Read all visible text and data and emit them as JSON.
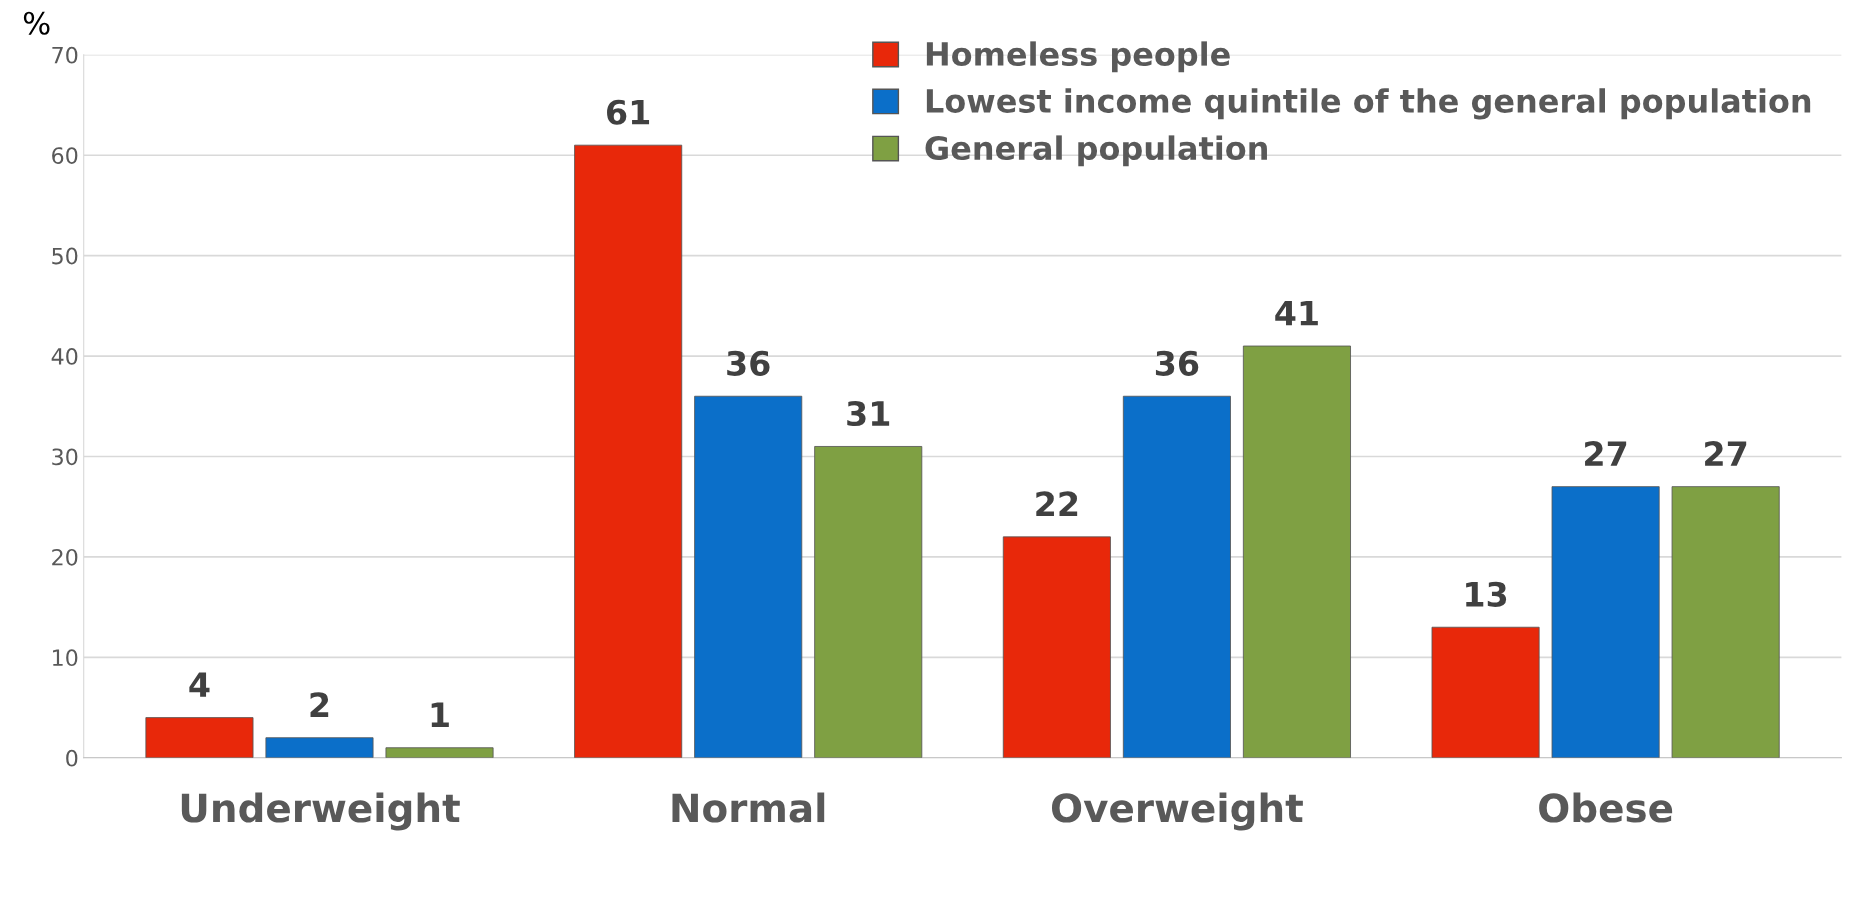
{
  "chart_data": {
    "type": "bar",
    "ylabel": "%",
    "categories": [
      "Underweight",
      "Normal",
      "Overweight",
      "Obese"
    ],
    "series": [
      {
        "name": "Homeless people",
        "color": "#e8280a",
        "values": [
          4,
          61,
          22,
          13
        ]
      },
      {
        "name": "Lowest income quintile of the general population",
        "color": "#0b6fc9",
        "values": [
          2,
          36,
          36,
          27
        ]
      },
      {
        "name": "General population",
        "color": "#7fa043",
        "values": [
          1,
          31,
          41,
          27
        ]
      }
    ],
    "ylim": [
      0,
      70
    ],
    "yticks": [
      0,
      10,
      20,
      30,
      40,
      50,
      60,
      70
    ],
    "grid": "y",
    "legend": "top right",
    "data_labels": true
  }
}
